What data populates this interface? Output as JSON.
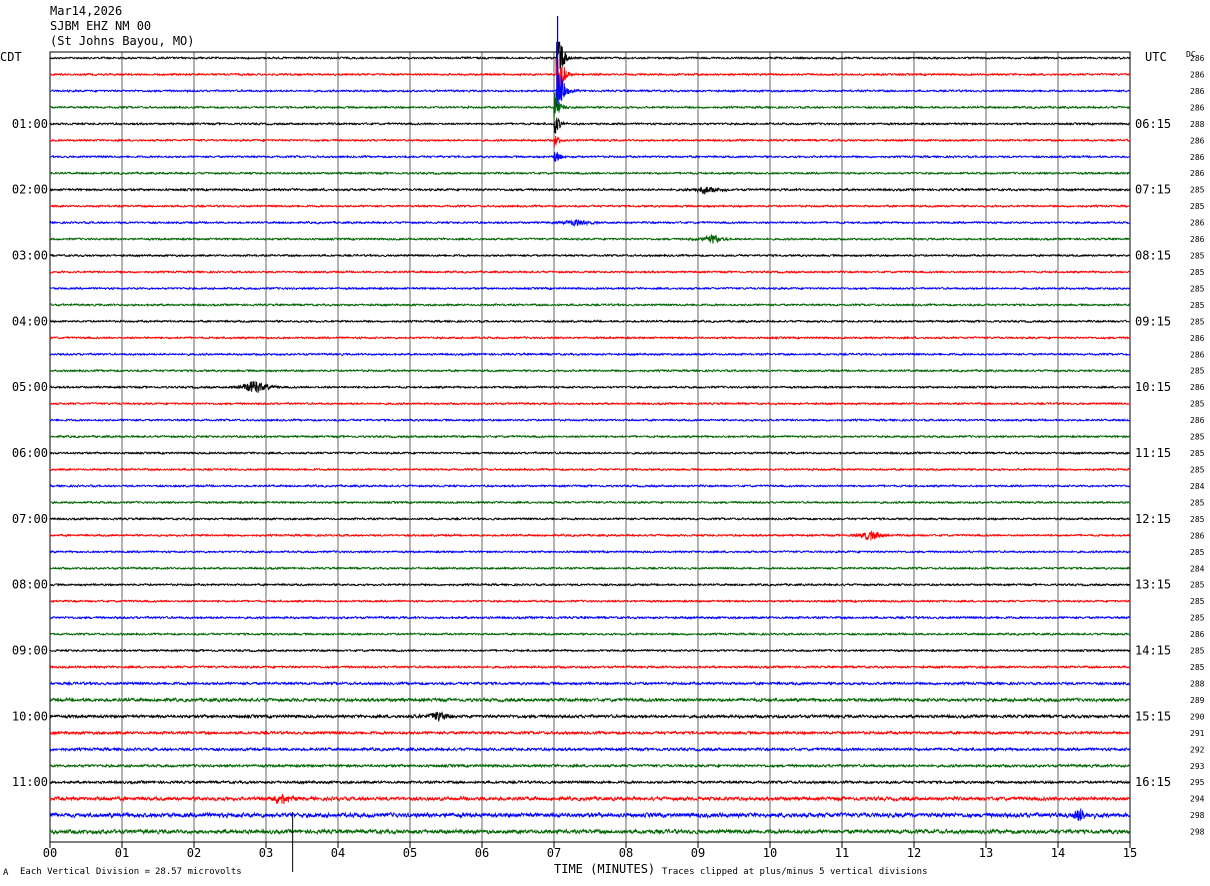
{
  "header": {
    "date": "Mar14,2026",
    "station": "SJBM EHZ NM 00",
    "location": "(St Johns Bayou, MO)"
  },
  "footer": {
    "left_marker": "A",
    "vertical_division_label": "Each Vertical Division =",
    "vertical_division_value": "28.57 microvolts",
    "clip_note": "Traces clipped at plus/minus 5 vertical divisions"
  },
  "colors": {
    "trace_cycle": [
      "#000000",
      "#ff0000",
      "#0000ff",
      "#006400"
    ],
    "grid": "#000000",
    "background": "#ffffff"
  },
  "chart_data": {
    "type": "line",
    "subtype": "helicorder-seismogram",
    "xlabel": "TIME (MINUTES)",
    "x_range": [
      0,
      15
    ],
    "x_ticks": [
      "00",
      "01",
      "02",
      "03",
      "04",
      "05",
      "06",
      "07",
      "08",
      "09",
      "10",
      "11",
      "12",
      "13",
      "14",
      "15"
    ],
    "left_axis_title": "CDT",
    "right_axis_title": "UTC",
    "dc_header": "DC",
    "left_labels": [
      "01:00",
      "02:00",
      "03:00",
      "04:00",
      "05:00",
      "06:00",
      "07:00",
      "08:00",
      "09:00",
      "10:00",
      "11:00"
    ],
    "right_labels": [
      "06:15",
      "07:15",
      "08:15",
      "09:15",
      "10:15",
      "11:15",
      "12:15",
      "13:15",
      "14:15",
      "15:15",
      "16:15"
    ],
    "hour_label_rows": [
      4,
      8,
      12,
      16,
      20,
      24,
      28,
      32,
      36,
      40,
      44
    ],
    "rows_per_hour": 4,
    "minutes_per_row": 15,
    "dc_values": [
      286,
      286,
      286,
      286,
      288,
      286,
      286,
      286,
      285,
      285,
      286,
      286,
      285,
      285,
      285,
      285,
      285,
      286,
      286,
      285,
      286,
      285,
      286,
      285,
      285,
      285,
      284,
      285,
      285,
      286,
      285,
      284,
      285,
      285,
      285,
      286,
      285,
      285,
      288,
      289,
      290,
      291,
      292,
      293,
      295,
      294,
      298,
      298
    ],
    "noise_level": [
      1.0,
      1.0,
      1.0,
      1.0,
      1.0,
      1.0,
      1.0,
      1.0,
      1.1,
      1.0,
      1.0,
      1.0,
      1.0,
      1.0,
      1.0,
      1.0,
      1.0,
      1.0,
      1.0,
      1.0,
      1.0,
      1.0,
      1.0,
      1.0,
      1.0,
      1.0,
      1.0,
      1.0,
      1.0,
      1.0,
      1.0,
      1.0,
      1.0,
      1.0,
      1.1,
      1.0,
      1.0,
      1.1,
      1.3,
      1.6,
      1.5,
      1.4,
      1.4,
      1.3,
      1.3,
      1.8,
      2.2,
      2.0
    ],
    "events": [
      {
        "row": 0,
        "minute": 7.05,
        "amplitude_divisions": 5,
        "kind": "spike"
      },
      {
        "row": 1,
        "minute": 7.05,
        "amplitude_divisions": 5,
        "kind": "spike"
      },
      {
        "row": 2,
        "minute": 7.05,
        "amplitude_divisions": 5,
        "kind": "spike"
      },
      {
        "row": 3,
        "minute": 7.02,
        "amplitude_divisions": 2,
        "kind": "spike"
      },
      {
        "row": 4,
        "minute": 7.02,
        "amplitude_divisions": 1.5,
        "kind": "spike"
      },
      {
        "row": 5,
        "minute": 7.02,
        "amplitude_divisions": 1,
        "kind": "spike"
      },
      {
        "row": 6,
        "minute": 7.02,
        "amplitude_divisions": 1,
        "kind": "spike"
      },
      {
        "row": 8,
        "minute": 9.1,
        "amplitude_divisions": 0.8,
        "kind": "burst"
      },
      {
        "row": 10,
        "minute": 7.3,
        "amplitude_divisions": 0.7,
        "kind": "burst"
      },
      {
        "row": 11,
        "minute": 9.2,
        "amplitude_divisions": 0.9,
        "kind": "burst"
      },
      {
        "row": 20,
        "minute": 2.85,
        "amplitude_divisions": 1.5,
        "kind": "burst"
      },
      {
        "row": 29,
        "minute": 11.4,
        "amplitude_divisions": 1.0,
        "kind": "burst"
      },
      {
        "row": 40,
        "minute": 5.4,
        "amplitude_divisions": 0.9,
        "kind": "burst"
      },
      {
        "row": 45,
        "minute": 3.2,
        "amplitude_divisions": 1.2,
        "kind": "burst"
      },
      {
        "row": 46,
        "minute": 14.3,
        "amplitude_divisions": 1.2,
        "kind": "burst"
      }
    ],
    "marker_minute": 3.37,
    "grid": true
  }
}
